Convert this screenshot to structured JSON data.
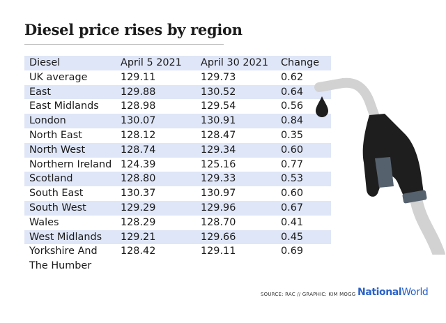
{
  "title": "Diesel price rises by region",
  "chart_data": {
    "type": "table",
    "title": "Diesel price rises by region",
    "columns": [
      "Diesel",
      "April 5 2021",
      "April 30 2021",
      "Change"
    ],
    "rows": [
      [
        "UK average",
        "129.11",
        "129.73",
        "0.62"
      ],
      [
        "East",
        "129.88",
        "130.52",
        "0.64"
      ],
      [
        "East Midlands",
        "128.98",
        "129.54",
        "0.56"
      ],
      [
        "London",
        "130.07",
        "130.91",
        "0.84"
      ],
      [
        "North East",
        "128.12",
        "128.47",
        "0.35"
      ],
      [
        "North West",
        "128.74",
        "129.34",
        "0.60"
      ],
      [
        "Northern Ireland",
        "124.39",
        "125.16",
        "0.77"
      ],
      [
        "Scotland",
        "128.80",
        "129.33",
        "0.53"
      ],
      [
        "South East",
        "130.37",
        "130.97",
        "0.60"
      ],
      [
        "South West",
        "129.29",
        "129.96",
        "0.67"
      ],
      [
        "Wales",
        "128.29",
        "128.70",
        "0.41"
      ],
      [
        "West Midlands",
        "129.21",
        "129.66",
        "0.45"
      ],
      [
        "Yorkshire And The Humber",
        "128.42",
        "129.11",
        "0.69"
      ]
    ]
  },
  "footer": {
    "source": "SOURCE: RAC // GRAPHIC: KIM MOGG",
    "brand_bold": "National",
    "brand_light": "World"
  },
  "colors": {
    "row_shade": "#dfe6f7",
    "brand_blue": "#2a62c8",
    "nozzle_dark": "#1e1e1e",
    "hose_grey": "#d2d2d2"
  },
  "icons": [
    "fuel-nozzle-icon",
    "fuel-drop-icon"
  ]
}
